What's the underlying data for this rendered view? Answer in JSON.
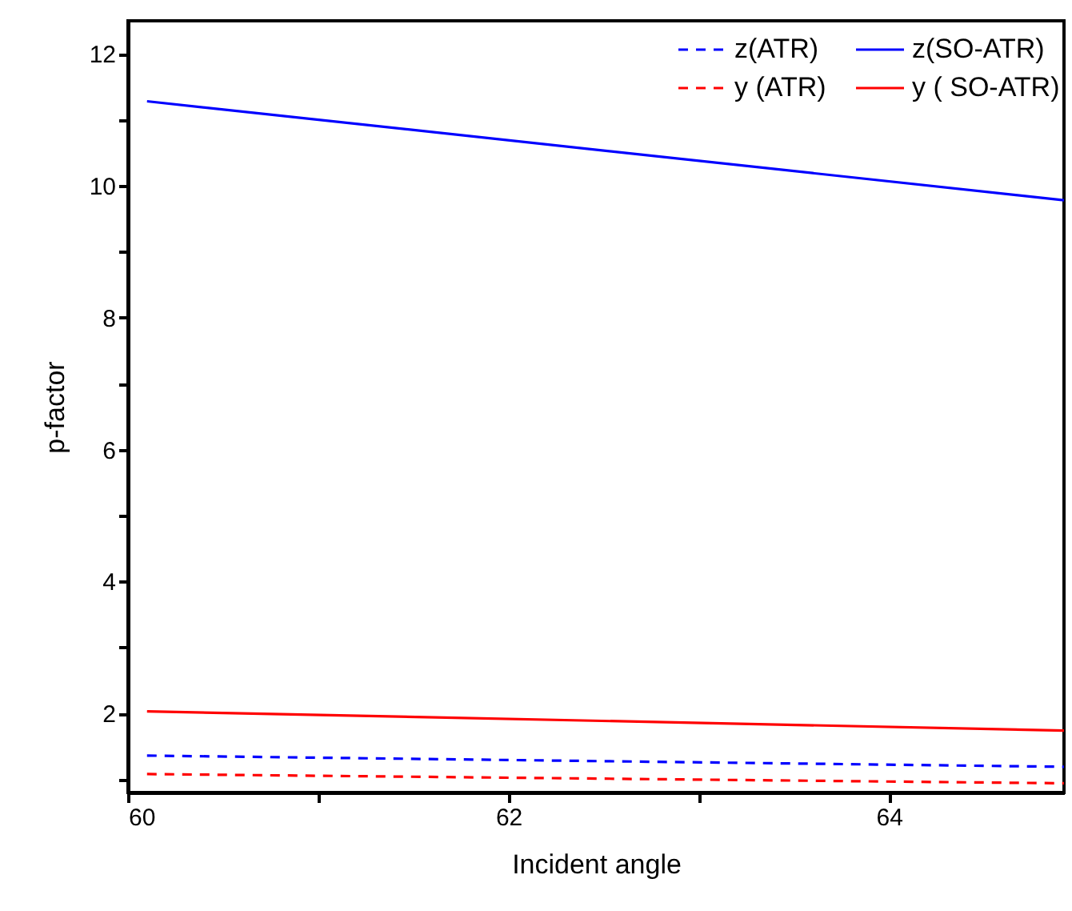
{
  "chart_data": {
    "type": "line",
    "xlabel": "Incident angle",
    "ylabel": "p-factor",
    "x": [
      60.1,
      64.92
    ],
    "series": [
      {
        "name": "z(ATR)",
        "color": "#0000ff",
        "line_style": "dashed",
        "values": [
          1.36,
          1.19
        ]
      },
      {
        "name": "y (ATR)",
        "color": "#ff0000",
        "line_style": "dashed",
        "values": [
          1.08,
          0.94
        ]
      },
      {
        "name": "z(SO-ATR)",
        "color": "#0000ff",
        "line_style": "solid",
        "values": [
          11.28,
          9.78
        ]
      },
      {
        "name": "y ( SO-ATR)",
        "color": "#ff0000",
        "line_style": "solid",
        "values": [
          2.03,
          1.74
        ]
      }
    ],
    "xlim": [
      60,
      64.92
    ],
    "ylim": [
      0.8,
      12.5
    ],
    "xticks": [
      60,
      {
        "value": 61,
        "label": null
      },
      62,
      {
        "value": 63,
        "label": null
      },
      64
    ],
    "yticks": [
      {
        "value": 1,
        "label": null
      },
      2,
      {
        "value": 3,
        "label": null
      },
      4,
      {
        "value": 5,
        "label": null
      },
      6,
      {
        "value": 7,
        "label": null
      },
      8,
      {
        "value": 9,
        "label": null
      },
      10,
      {
        "value": 11,
        "label": null
      },
      12
    ],
    "grid": false,
    "legend": "top right",
    "marker": "none"
  }
}
